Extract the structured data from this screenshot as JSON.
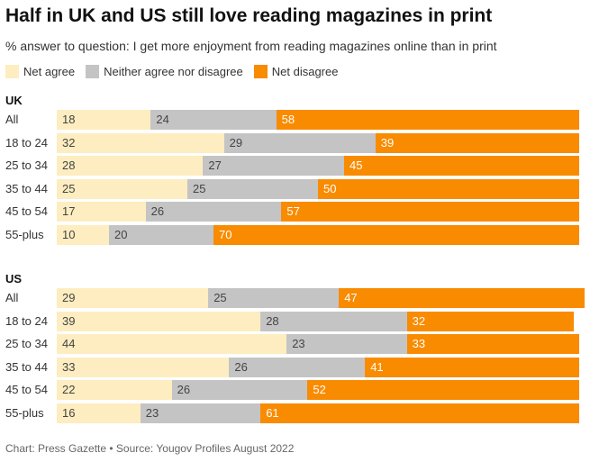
{
  "chart_data": {
    "type": "bar",
    "orientation": "horizontal-stacked",
    "title": "Half in UK and US still love reading magazines in print",
    "subtitle": "% answer to question: I get more enjoyment from reading magazines online than in print",
    "legend": [
      {
        "name": "Net agree",
        "color": "#fdedc0",
        "text": "#444"
      },
      {
        "name": "Neither agree nor disagree",
        "color": "#c4c4c4",
        "text": "#444"
      },
      {
        "name": "Net disagree",
        "color": "#f98b00",
        "text": "#ffffff"
      }
    ],
    "legend_placement": "top-left",
    "groups": [
      {
        "name": "UK",
        "categories": [
          "All",
          "18 to 24",
          "25 to 34",
          "35 to 44",
          "45 to 54",
          "55-plus"
        ],
        "series": [
          {
            "name": "Net agree",
            "values": [
              18,
              32,
              28,
              25,
              17,
              10
            ]
          },
          {
            "name": "Neither agree nor disagree",
            "values": [
              24,
              29,
              27,
              25,
              26,
              20
            ]
          },
          {
            "name": "Net disagree",
            "values": [
              58,
              39,
              45,
              50,
              57,
              70
            ]
          }
        ]
      },
      {
        "name": "US",
        "categories": [
          "All",
          "18 to 24",
          "25 to 34",
          "35 to 44",
          "45 to 54",
          "55-plus"
        ],
        "series": [
          {
            "name": "Net agree",
            "values": [
              29,
              39,
              44,
              33,
              22,
              16
            ]
          },
          {
            "name": "Neither agree nor disagree",
            "values": [
              25,
              28,
              23,
              26,
              26,
              23
            ]
          },
          {
            "name": "Net disagree",
            "values": [
              47,
              32,
              33,
              41,
              52,
              61
            ]
          }
        ]
      }
    ],
    "xlim": [
      0,
      100
    ]
  },
  "footer": "Chart: Press Gazette • Source: Yougov Profiles August 2022"
}
